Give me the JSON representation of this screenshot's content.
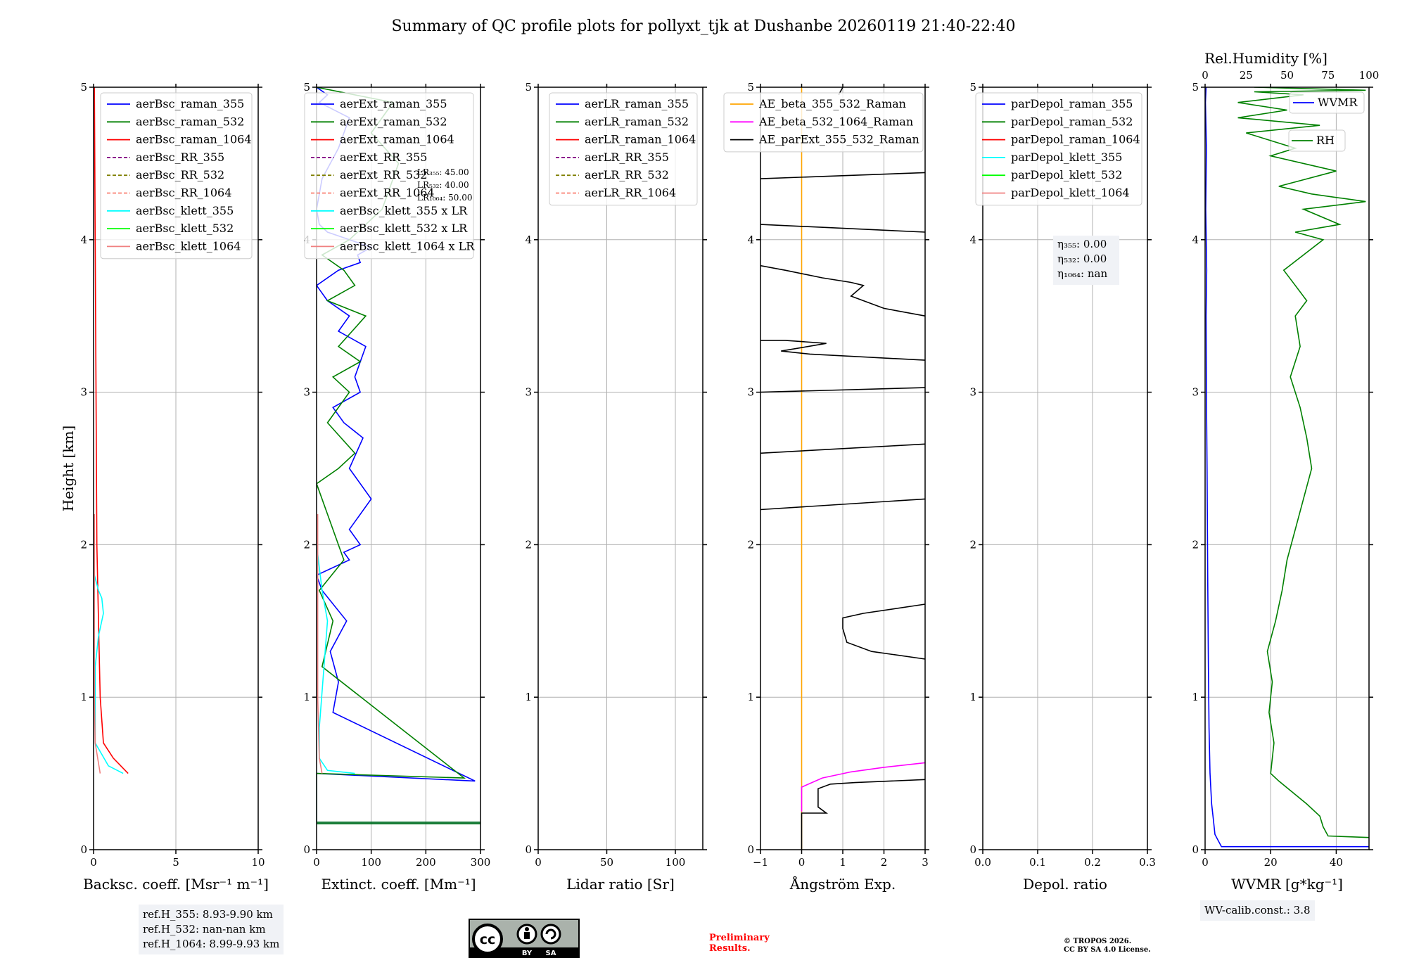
{
  "title": "Summary of QC profile plots for pollyxt_tjk at Dushanbe 20260119 21:40-22:40",
  "ylabel": "Height [km]",
  "colors": {
    "blue": "#0000ff",
    "green": "#008000",
    "red": "#ff0000",
    "purple": "#800080",
    "olive": "#808000",
    "salmon": "#fa8072",
    "cyan": "#00ffff",
    "lime": "#00ff00",
    "coral": "#f08080",
    "orange": "#ffa500",
    "magenta": "#ff00ff",
    "black": "#000000"
  },
  "chart_data": [
    {
      "id": "backscatter",
      "type": "line",
      "xlabel": "Backsc. coeff. [Msr⁻¹ m⁻¹]",
      "xlim": [
        0,
        10
      ],
      "ylim": [
        0,
        5
      ],
      "xticks": [
        "0",
        "5",
        "10"
      ],
      "yticks": [
        "0",
        "1",
        "2",
        "3",
        "4",
        "5"
      ],
      "legend": [
        "aerBsc_raman_355",
        "aerBsc_raman_532",
        "aerBsc_raman_1064",
        "aerBsc_RR_355",
        "aerBsc_RR_532",
        "aerBsc_RR_1064",
        "aerBsc_klett_355",
        "aerBsc_klett_532",
        "aerBsc_klett_1064"
      ],
      "legend_styles": [
        "blue|solid",
        "green|solid",
        "red|solid",
        "purple|dash",
        "olive|dash",
        "salmon|dash",
        "cyan|solid",
        "lime|solid",
        "coral|solid"
      ],
      "series": [
        {
          "name": "aerBsc_raman_1064",
          "color": "red",
          "x": [
            2.1,
            1.2,
            0.6,
            0.4,
            0.3,
            0.2,
            0.15,
            0.1,
            0.05
          ],
          "y": [
            0.5,
            0.6,
            0.7,
            1.0,
            1.5,
            2.0,
            3.0,
            4.0,
            5.0
          ]
        },
        {
          "name": "aerBsc_klett_355",
          "color": "cyan",
          "x": [
            1.8,
            0.9,
            0.1,
            0.1,
            0.3,
            0.6,
            0.5,
            0.3,
            0.05,
            0.0
          ],
          "y": [
            0.5,
            0.55,
            0.7,
            1.2,
            1.4,
            1.55,
            1.65,
            1.7,
            1.8,
            1.9
          ]
        },
        {
          "name": "aerBsc_klett_1064",
          "color": "coral",
          "x": [
            0.4,
            0.1,
            0.05,
            0.05
          ],
          "y": [
            0.5,
            0.7,
            1.0,
            2.2
          ]
        }
      ],
      "info": [
        "ref.H_355: 8.93-9.90 km",
        "ref.H_532: nan-nan km",
        "ref.H_1064: 8.99-9.93 km"
      ]
    },
    {
      "id": "extinction",
      "type": "line",
      "xlabel": "Extinct. coeff. [Mm⁻¹]",
      "xlim": [
        0,
        300
      ],
      "ylim": [
        0,
        5
      ],
      "xticks": [
        "0",
        "100",
        "200",
        "300"
      ],
      "yticks": [
        "0",
        "1",
        "2",
        "3",
        "4",
        "5"
      ],
      "legend": [
        "aerExt_raman_355",
        "aerExt_raman_532",
        "aerExt_raman_1064",
        "aerExt_RR_355",
        "aerExt_RR_532",
        "aerExt_RR_1064",
        "aerBsc_klett_355 x LR",
        "aerBsc_klett_532 x LR",
        "aerBsc_klett_1064 x LR"
      ],
      "legend_styles": [
        "blue|solid",
        "green|solid",
        "red|solid",
        "purple|dash",
        "olive|dash",
        "salmon|dash",
        "cyan|solid",
        "lime|solid",
        "coral|solid"
      ],
      "series": [
        {
          "name": "aerExt_raman_355",
          "color": "blue",
          "x": [
            0,
            300,
            300,
            0,
            0,
            290,
            30,
            40,
            25,
            55,
            10,
            0,
            60,
            50,
            80,
            60,
            100,
            60,
            85,
            50,
            30,
            80,
            70,
            90,
            40,
            60,
            20,
            0,
            40,
            80,
            75,
            100,
            60,
            20,
            5,
            0,
            10,
            40,
            60,
            5,
            20,
            0
          ],
          "y": [
            0.17,
            0.17,
            0.18,
            0.18,
            0.5,
            0.45,
            0.9,
            1.1,
            1.3,
            1.5,
            1.7,
            1.8,
            1.9,
            1.95,
            2.0,
            2.1,
            2.3,
            2.5,
            2.7,
            2.8,
            2.9,
            3.0,
            3.1,
            3.3,
            3.4,
            3.5,
            3.6,
            3.7,
            3.8,
            3.85,
            3.9,
            3.95,
            4.0,
            4.05,
            4.1,
            4.2,
            4.4,
            4.6,
            4.8,
            4.9,
            4.95,
            5.0
          ]
        },
        {
          "name": "aerExt_raman_532",
          "color": "green",
          "x": [
            0,
            300,
            300,
            0,
            0,
            270,
            10,
            30,
            5,
            50,
            20,
            0,
            40,
            70,
            20,
            60,
            30,
            80,
            40,
            90,
            20,
            70,
            50,
            10,
            60,
            120,
            150,
            100,
            140,
            0
          ],
          "y": [
            0.17,
            0.17,
            0.18,
            0.18,
            0.5,
            0.47,
            1.2,
            1.5,
            1.7,
            1.9,
            2.2,
            2.4,
            2.5,
            2.6,
            2.8,
            3.0,
            3.1,
            3.2,
            3.3,
            3.5,
            3.6,
            3.7,
            3.8,
            3.9,
            4.0,
            4.2,
            4.5,
            4.7,
            4.9,
            5.0
          ]
        },
        {
          "name": "aerBsc_klett_355 x LR",
          "color": "cyan",
          "x": [
            70,
            20,
            5,
            5,
            20,
            10,
            0
          ],
          "y": [
            0.5,
            0.52,
            0.6,
            0.8,
            1.5,
            1.7,
            2.0
          ]
        },
        {
          "name": "aerBsc_klett_1064 x LR",
          "color": "coral",
          "x": [
            10,
            5,
            2,
            2
          ],
          "y": [
            0.5,
            0.6,
            1.0,
            2.2
          ]
        }
      ],
      "lr_box": [
        "LR₃₅₅: 45.00",
        "LR₅₃₂: 40.00",
        "LR₁₀₆₄: 50.00"
      ]
    },
    {
      "id": "lidar_ratio",
      "type": "line",
      "xlabel": "Lidar ratio [Sr]",
      "xlim": [
        0,
        120
      ],
      "ylim": [
        0,
        5
      ],
      "xticks": [
        "0",
        "50",
        "100"
      ],
      "yticks": [
        "0",
        "1",
        "2",
        "3",
        "4",
        "5"
      ],
      "legend": [
        "aerLR_raman_355",
        "aerLR_raman_532",
        "aerLR_raman_1064",
        "aerLR_RR_355",
        "aerLR_RR_532",
        "aerLR_RR_1064"
      ],
      "legend_styles": [
        "blue|solid",
        "green|solid",
        "red|solid",
        "purple|dash",
        "olive|dash",
        "salmon|dash"
      ],
      "series": []
    },
    {
      "id": "angstrom",
      "type": "line",
      "xlabel": "Ångström Exp.",
      "xlim": [
        -1,
        3
      ],
      "ylim": [
        0,
        5
      ],
      "xticks": [
        "−1",
        "0",
        "1",
        "2",
        "3"
      ],
      "yticks": [
        "0",
        "1",
        "2",
        "3",
        "4",
        "5"
      ],
      "legend": [
        "AE_beta_355_532_Raman",
        "AE_beta_532_1064_Raman",
        "AE_parExt_355_532_Raman"
      ],
      "legend_styles": [
        "orange|solid",
        "magenta|solid",
        "black|solid"
      ],
      "series": [
        {
          "name": "AE_beta_355_532_Raman",
          "color": "orange",
          "x": [
            0,
            0
          ],
          "y": [
            0,
            5
          ]
        },
        {
          "name": "AE_beta_532_1064_Raman",
          "color": "magenta",
          "x": [
            0,
            0,
            0.5,
            1.2,
            2.0,
            3.0
          ],
          "y": [
            0.25,
            0.41,
            0.47,
            0.51,
            0.54,
            0.57
          ]
        },
        {
          "name": "AE_parExt_355_532_Raman",
          "color": "black",
          "x": [
            0,
            0,
            0.6,
            0.4,
            0.4,
            0.7,
            1.3,
            3.0
          ],
          "y": [
            0,
            0.24,
            0.24,
            0.28,
            0.4,
            0.43,
            0.44,
            0.46
          ]
        },
        {
          "name": "AE_parExt_355_532_Raman_b",
          "color": "black",
          "x": [
            3.0,
            1.7,
            1.1,
            1.0,
            1.0,
            1.5,
            3.0
          ],
          "y": [
            1.25,
            1.3,
            1.36,
            1.45,
            1.52,
            1.55,
            1.61
          ]
        },
        {
          "name": "AE_parExt_355_532_Raman_c",
          "color": "black",
          "x": [
            -1,
            3
          ],
          "y": [
            2.23,
            2.3
          ]
        },
        {
          "name": "AE_parExt_355_532_Raman_d",
          "color": "black",
          "x": [
            -1,
            3
          ],
          "y": [
            2.6,
            2.66
          ]
        },
        {
          "name": "AE_parExt_355_532_Raman_e",
          "color": "black",
          "x": [
            -1,
            3
          ],
          "y": [
            3.0,
            3.03
          ]
        },
        {
          "name": "AE_parExt_355_532_Raman_f",
          "color": "black",
          "x": [
            3.0,
            0.2,
            -0.5,
            0.6,
            -0.4,
            -1
          ],
          "y": [
            3.21,
            3.25,
            3.27,
            3.32,
            3.34,
            3.34
          ]
        },
        {
          "name": "AE_parExt_355_532_Raman_g",
          "color": "black",
          "x": [
            3.0,
            2.0,
            1.2,
            1.5,
            1.2,
            0.5,
            -0.4,
            -1
          ],
          "y": [
            3.5,
            3.55,
            3.63,
            3.7,
            3.72,
            3.75,
            3.8,
            3.83
          ]
        },
        {
          "name": "AE_parExt_355_532_Raman_h",
          "color": "black",
          "x": [
            -1,
            3
          ],
          "y": [
            4.1,
            4.05
          ]
        },
        {
          "name": "AE_parExt_355_532_Raman_i",
          "color": "black",
          "x": [
            -1,
            3
          ],
          "y": [
            4.4,
            4.44
          ]
        },
        {
          "name": "AE_parExt_355_532_Raman_j",
          "color": "black",
          "x": [
            0.9,
            1.0
          ],
          "y": [
            4.95,
            5.0
          ]
        }
      ]
    },
    {
      "id": "depol",
      "type": "line",
      "xlabel": "Depol. ratio",
      "xlim": [
        0,
        0.3
      ],
      "ylim": [
        0,
        5
      ],
      "xticks": [
        "0.0",
        "0.1",
        "0.2",
        "0.3"
      ],
      "yticks": [
        "0",
        "1",
        "2",
        "3",
        "4",
        "5"
      ],
      "legend": [
        "parDepol_raman_355",
        "parDepol_raman_532",
        "parDepol_raman_1064",
        "parDepol_klett_355",
        "parDepol_klett_532",
        "parDepol_klett_1064"
      ],
      "legend_styles": [
        "blue|solid",
        "green|solid",
        "red|solid",
        "cyan|solid",
        "lime|solid",
        "coral|solid"
      ],
      "series": [],
      "eta": [
        "η₃₅₅: 0.00",
        "η₅₃₂: 0.00",
        "η₁₀₆₄: nan"
      ]
    },
    {
      "id": "wvmr",
      "type": "line",
      "xlabel": "WVMR [g*kg⁻¹]",
      "xlabel_top": "Rel.Humidity [%]",
      "xlim": [
        0,
        50
      ],
      "xlim_top": [
        0,
        100
      ],
      "ylim": [
        0,
        5
      ],
      "xticks": [
        "0",
        "20",
        "40"
      ],
      "xticks_top": [
        "0",
        "25",
        "50",
        "75",
        "100"
      ],
      "yticks": [
        "0",
        "1",
        "2",
        "3",
        "4",
        "5"
      ],
      "legend": [
        "WVMR",
        "RH"
      ],
      "legend_styles": [
        "blue|solid",
        "green|solid"
      ],
      "series": [
        {
          "name": "WVMR",
          "color": "blue",
          "x": [
            50,
            5,
            4,
            3,
            2.5,
            2,
            1.5,
            1.2,
            1.0,
            0.8,
            0.6,
            0.4,
            0.3,
            0.5,
            0.2,
            0.4,
            0.1,
            0.3
          ],
          "y": [
            0.02,
            0.02,
            0.06,
            0.1,
            0.2,
            0.3,
            0.5,
            0.8,
            1.2,
            1.8,
            2.5,
            3.0,
            3.5,
            3.8,
            4.2,
            4.6,
            4.9,
            5.0
          ]
        },
        {
          "name": "RH",
          "color": "green",
          "x": [
            100,
            75,
            72,
            70,
            62,
            45,
            40,
            42,
            39,
            41,
            38,
            43,
            47,
            50,
            55,
            60,
            65,
            62,
            58,
            52,
            58,
            55,
            62,
            55,
            48,
            60,
            72,
            55,
            82,
            60,
            98,
            65,
            45,
            80,
            40,
            55,
            25,
            70,
            20,
            50,
            20,
            60,
            30,
            98,
            30
          ],
          "y": [
            0.08,
            0.09,
            0.15,
            0.22,
            0.3,
            0.45,
            0.5,
            0.7,
            0.9,
            1.1,
            1.3,
            1.5,
            1.7,
            1.9,
            2.1,
            2.3,
            2.5,
            2.7,
            2.9,
            3.1,
            3.3,
            3.5,
            3.6,
            3.7,
            3.8,
            3.9,
            4.0,
            4.05,
            4.1,
            4.2,
            4.25,
            4.3,
            4.35,
            4.45,
            4.55,
            4.6,
            4.7,
            4.75,
            4.8,
            4.85,
            4.9,
            4.95,
            4.97,
            4.98,
            5.0
          ]
        }
      ],
      "info": [
        "WV-calib.const.: 3.8"
      ]
    }
  ],
  "footer": {
    "license_badge": [
      "BY",
      "SA"
    ],
    "preliminary": [
      "Preliminary",
      "Results."
    ],
    "copyright": [
      "© TROPOS 2026.",
      "CC BY SA 4.0 License."
    ]
  }
}
